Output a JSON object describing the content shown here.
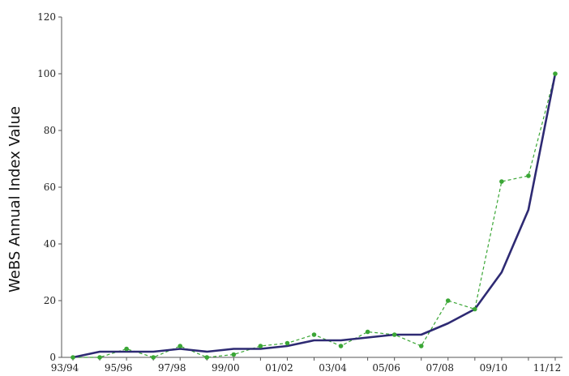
{
  "chart_data": {
    "type": "line",
    "title": "",
    "xlabel": "",
    "ylabel": "WeBS Annual Index Value",
    "ylim": [
      0,
      120
    ],
    "yticks": [
      0,
      20,
      40,
      60,
      80,
      100,
      120
    ],
    "grid": false,
    "legend": "none",
    "categories": [
      "93/94",
      "94/95",
      "95/96",
      "96/97",
      "97/98",
      "98/99",
      "99/00",
      "00/01",
      "01/02",
      "02/03",
      "03/04",
      "04/05",
      "05/06",
      "06/07",
      "07/08",
      "08/09",
      "09/10",
      "10/11",
      "11/12"
    ],
    "tick_labels": [
      "93/94",
      "95/96",
      "97/98",
      "99/00",
      "01/02",
      "03/04",
      "05/06",
      "07/08",
      "09/10",
      "11/12"
    ],
    "series": [
      {
        "style": "solid",
        "color": "#2e2a73",
        "values": [
          0,
          2,
          2,
          2,
          3,
          2,
          3,
          3,
          4,
          6,
          6,
          7,
          8,
          8,
          12,
          17,
          30,
          52,
          100
        ]
      },
      {
        "style": "dashed",
        "color": "#3aa635",
        "values": [
          0,
          0,
          3,
          0,
          4,
          0,
          1,
          4,
          5,
          8,
          4,
          9,
          8,
          4,
          20,
          17,
          62,
          64,
          100
        ]
      }
    ]
  }
}
